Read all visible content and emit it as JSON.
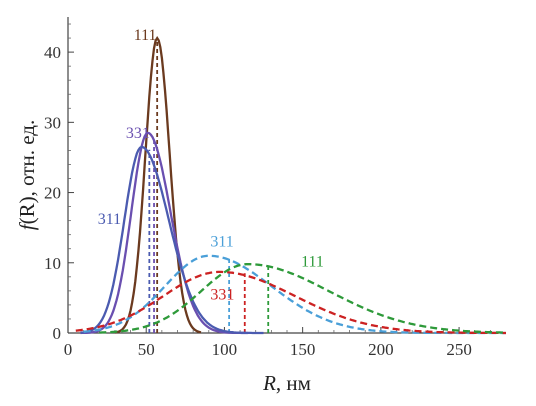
{
  "chart_data": {
    "type": "line",
    "xlabel": {
      "symbol": "R",
      "unit": ", нм"
    },
    "ylabel": {
      "symbol": "f",
      "rest": "(R), отн. ед."
    },
    "xlim": [
      0,
      280
    ],
    "ylim": [
      0,
      45
    ],
    "x_ticks": [
      0,
      50,
      100,
      150,
      200,
      250
    ],
    "y_ticks": [
      0,
      10,
      20,
      30,
      40
    ],
    "grid": false,
    "legend": "none",
    "series": [
      {
        "name": "111",
        "style": "solid",
        "color": "#6b3a1f",
        "mode": 57,
        "peak": 42.0,
        "sigma_left": 7.5,
        "sigma_right": 8.0,
        "x_min": 30,
        "x_max": 85,
        "label_x": 42,
        "label_y": 41.7
      },
      {
        "name": "331",
        "style": "solid",
        "color": "#6a4fb0",
        "mode": 51,
        "peak": 28.5,
        "sigma_left": 10.5,
        "sigma_right": 14.5,
        "x_min": 8,
        "x_max": 115,
        "label_x": 37,
        "label_y": 27.8
      },
      {
        "name": "311",
        "style": "solid",
        "color": "#4b5bb0",
        "mode": 47,
        "peak": 26.5,
        "sigma_left": 11.0,
        "sigma_right": 17.5,
        "x_min": 8,
        "x_max": 125,
        "label_x": 19,
        "label_y": 15.5
      },
      {
        "name": "311",
        "style": "dashed",
        "color": "#4a9fd8",
        "mode": 90,
        "peak": 11.0,
        "sigma_left": 28,
        "sigma_right": 40,
        "x_min": 10,
        "x_max": 280,
        "label_x": 91,
        "label_y": 12.3
      },
      {
        "name": "331",
        "style": "dashed",
        "color": "#cc2222",
        "mode": 97,
        "peak": 8.7,
        "sigma_left": 36,
        "sigma_right": 48,
        "x_min": 5,
        "x_max": 280,
        "label_x": 91,
        "label_y": 4.8
      },
      {
        "name": "111",
        "style": "dashed",
        "color": "#2e9a3a",
        "mode": 115,
        "peak": 9.8,
        "sigma_left": 30,
        "sigma_right": 52,
        "x_min": 20,
        "x_max": 280,
        "label_x": 149,
        "label_y": 9.5
      }
    ],
    "markers": [
      {
        "x": 57,
        "y": 42.0,
        "color": "#6b3a1f"
      },
      {
        "x": 55,
        "y": 27.6,
        "color": "#6a4fb0"
      },
      {
        "x": 52,
        "y": 26.1,
        "color": "#4b5bb0"
      },
      {
        "x": 103,
        "y": 10.6,
        "color": "#4a9fd8"
      },
      {
        "x": 113,
        "y": 8.5,
        "color": "#cc2222"
      },
      {
        "x": 128,
        "y": 9.6,
        "color": "#2e9a3a"
      }
    ]
  }
}
